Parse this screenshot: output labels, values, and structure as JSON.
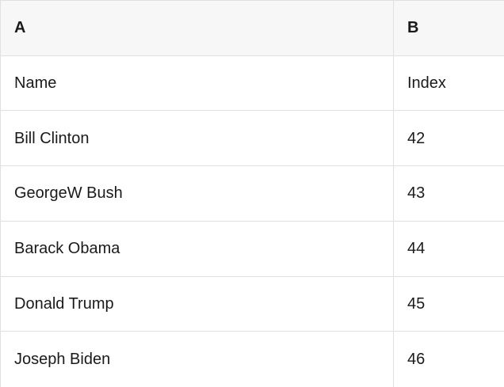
{
  "table": {
    "column_headers": [
      "A",
      "B"
    ],
    "rows": [
      [
        "Name",
        "Index"
      ],
      [
        "Bill Clinton",
        "42"
      ],
      [
        "GeorgeW Bush",
        "43"
      ],
      [
        "Barack Obama",
        "44"
      ],
      [
        "Donald Trump",
        "45"
      ],
      [
        "Joseph Biden",
        "46"
      ]
    ]
  },
  "colors": {
    "header_background": "#f7f7f7",
    "row_background": "#ffffff",
    "border": "#e0e0e0",
    "text": "#1a1a1a"
  }
}
